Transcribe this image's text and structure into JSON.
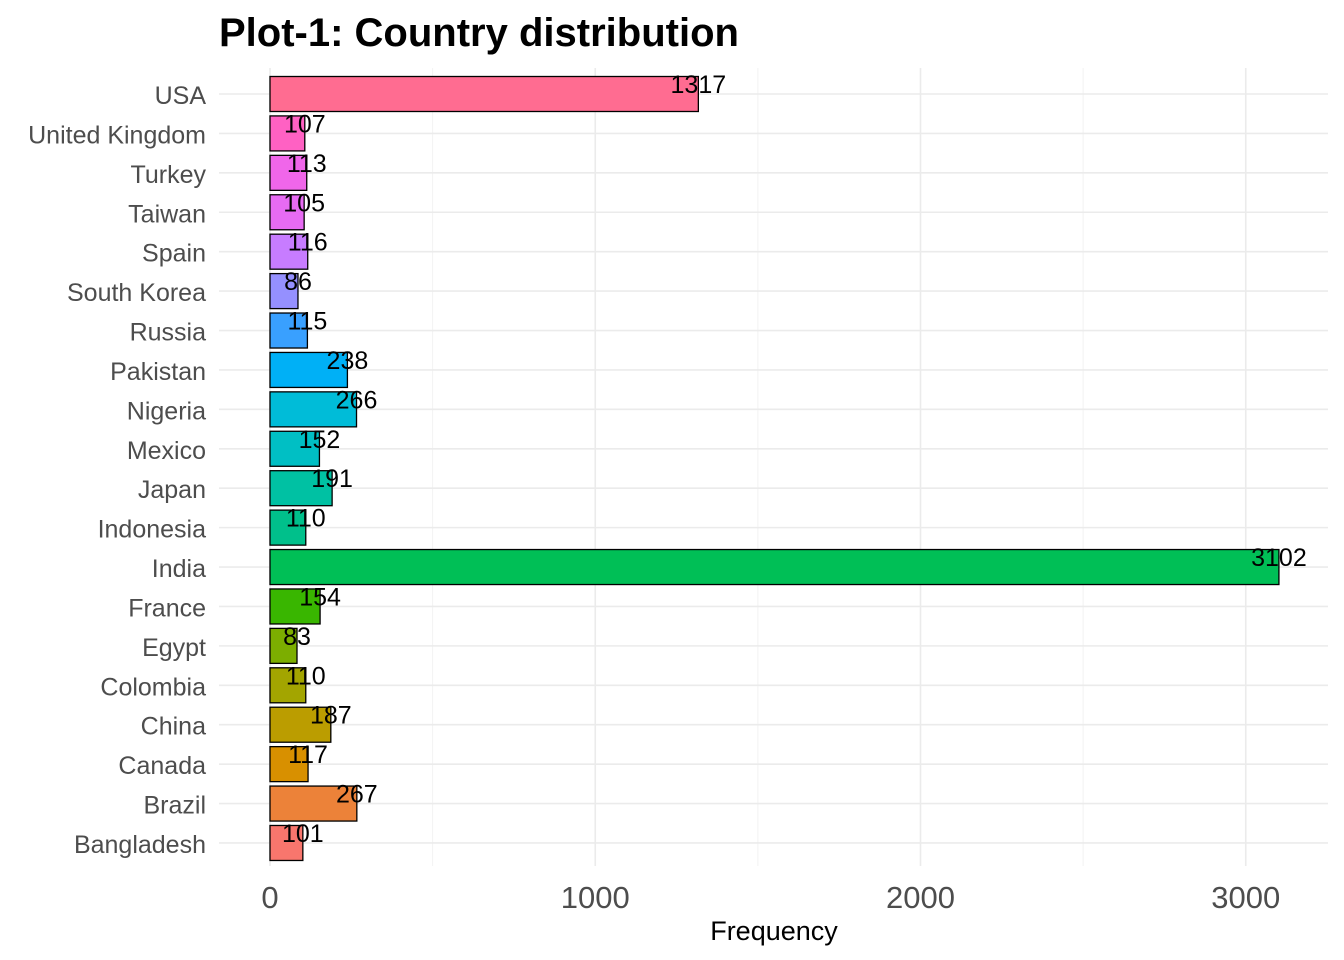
{
  "chart_data": {
    "type": "bar",
    "orientation": "horizontal",
    "title": "Plot-1: Country distribution",
    "xlabel": "Frequency",
    "ylabel": "",
    "xlim": [
      0,
      3200
    ],
    "x_ticks": [
      0,
      1000,
      2000,
      3000
    ],
    "x_tick_labels": [
      "0",
      "1000",
      "2000",
      "3000"
    ],
    "grid": true,
    "legend": "none",
    "categories": [
      "USA",
      "United Kingdom",
      "Turkey",
      "Taiwan",
      "Spain",
      "South Korea",
      "Russia",
      "Pakistan",
      "Nigeria",
      "Mexico",
      "Japan",
      "Indonesia",
      "India",
      "France",
      "Egypt",
      "Colombia",
      "China",
      "Canada",
      "Brazil",
      "Bangladesh"
    ],
    "values": [
      1317,
      107,
      113,
      105,
      116,
      86,
      115,
      238,
      266,
      152,
      191,
      110,
      3102,
      154,
      83,
      110,
      187,
      117,
      267,
      101
    ],
    "value_labels": [
      "1317",
      "107",
      "113",
      "105",
      "116",
      "86",
      "115",
      "238",
      "266",
      "152",
      "191",
      "110",
      "3102",
      "154",
      "83",
      "110",
      "187",
      "117",
      "267",
      "101"
    ],
    "colors": [
      "#FF6C91",
      "#FF61C3",
      "#F066EA",
      "#E76BF3",
      "#C77CFF",
      "#9590FF",
      "#39A0FF",
      "#00B0F6",
      "#00BCD8",
      "#00BFC4",
      "#00C1A3",
      "#00C08B",
      "#00BF56",
      "#39B600",
      "#7CAE00",
      "#A3A500",
      "#BB9D00",
      "#D89000",
      "#EC8239",
      "#F8766D"
    ],
    "bar_outline": "#000000"
  }
}
